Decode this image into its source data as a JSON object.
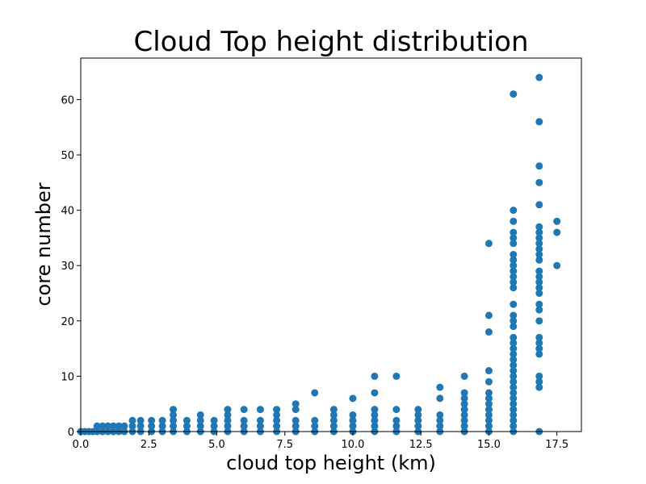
{
  "chart_data": {
    "type": "scatter",
    "title": "Cloud Top height distribution",
    "xlabel": "cloud top height (km)",
    "ylabel": "core number",
    "xlim": [
      0,
      18.4
    ],
    "ylim": [
      0,
      67.5
    ],
    "xticks": [
      0.0,
      2.5,
      5.0,
      7.5,
      10.0,
      12.5,
      15.0,
      17.5
    ],
    "xtick_labels": [
      "0.0",
      "2.5",
      "5.0",
      "7.5",
      "10.0",
      "12.5",
      "15.0",
      "17.5"
    ],
    "yticks": [
      0,
      10,
      20,
      30,
      40,
      50,
      60
    ],
    "ytick_labels": [
      "0",
      "10",
      "20",
      "30",
      "40",
      "50",
      "60"
    ],
    "grid": false,
    "marker_color": "#1f77b4",
    "series": [
      {
        "points": [
          [
            0.0,
            0
          ],
          [
            0.15,
            0
          ],
          [
            0.3,
            0
          ],
          [
            0.45,
            0
          ],
          [
            0.6,
            0
          ],
          [
            0.6,
            1
          ],
          [
            0.8,
            0
          ],
          [
            0.8,
            1
          ],
          [
            1.0,
            0
          ],
          [
            1.0,
            1
          ],
          [
            1.2,
            0
          ],
          [
            1.2,
            1
          ],
          [
            1.4,
            0
          ],
          [
            1.4,
            1
          ],
          [
            1.6,
            0
          ],
          [
            1.6,
            1
          ],
          [
            1.9,
            0
          ],
          [
            1.9,
            1
          ],
          [
            1.9,
            2
          ],
          [
            2.2,
            0
          ],
          [
            2.2,
            1
          ],
          [
            2.2,
            2
          ],
          [
            2.6,
            0
          ],
          [
            2.6,
            1
          ],
          [
            2.6,
            2
          ],
          [
            3.0,
            0
          ],
          [
            3.0,
            1
          ],
          [
            3.0,
            2
          ],
          [
            3.4,
            0
          ],
          [
            3.4,
            1
          ],
          [
            3.4,
            2
          ],
          [
            3.4,
            3
          ],
          [
            3.4,
            4
          ],
          [
            3.9,
            0
          ],
          [
            3.9,
            1
          ],
          [
            3.9,
            2
          ],
          [
            4.4,
            0
          ],
          [
            4.4,
            1
          ],
          [
            4.4,
            2
          ],
          [
            4.4,
            3
          ],
          [
            4.9,
            0
          ],
          [
            4.9,
            1
          ],
          [
            4.9,
            2
          ],
          [
            5.4,
            0
          ],
          [
            5.4,
            1
          ],
          [
            5.4,
            2
          ],
          [
            5.4,
            3
          ],
          [
            5.4,
            4
          ],
          [
            6.0,
            0
          ],
          [
            6.0,
            1
          ],
          [
            6.0,
            2
          ],
          [
            6.0,
            4
          ],
          [
            6.6,
            0
          ],
          [
            6.6,
            1
          ],
          [
            6.6,
            2
          ],
          [
            6.6,
            4
          ],
          [
            7.2,
            0
          ],
          [
            7.2,
            1
          ],
          [
            7.2,
            2
          ],
          [
            7.2,
            3
          ],
          [
            7.2,
            4
          ],
          [
            7.9,
            0
          ],
          [
            7.9,
            1
          ],
          [
            7.9,
            2
          ],
          [
            7.9,
            4
          ],
          [
            7.9,
            5
          ],
          [
            8.6,
            0
          ],
          [
            8.6,
            1
          ],
          [
            8.6,
            2
          ],
          [
            8.6,
            7
          ],
          [
            9.3,
            0
          ],
          [
            9.3,
            1
          ],
          [
            9.3,
            2
          ],
          [
            9.3,
            3
          ],
          [
            9.3,
            4
          ],
          [
            10.0,
            0
          ],
          [
            10.0,
            1
          ],
          [
            10.0,
            2
          ],
          [
            10.0,
            3
          ],
          [
            10.0,
            6
          ],
          [
            10.8,
            0
          ],
          [
            10.8,
            1
          ],
          [
            10.8,
            2
          ],
          [
            10.8,
            3
          ],
          [
            10.8,
            4
          ],
          [
            10.8,
            7
          ],
          [
            10.8,
            10
          ],
          [
            11.6,
            0
          ],
          [
            11.6,
            1
          ],
          [
            11.6,
            2
          ],
          [
            11.6,
            4
          ],
          [
            11.6,
            10
          ],
          [
            12.4,
            0
          ],
          [
            12.4,
            1
          ],
          [
            12.4,
            2
          ],
          [
            12.4,
            3
          ],
          [
            12.4,
            4
          ],
          [
            13.2,
            0
          ],
          [
            13.2,
            1
          ],
          [
            13.2,
            2
          ],
          [
            13.2,
            3
          ],
          [
            13.2,
            6
          ],
          [
            13.2,
            8
          ],
          [
            14.1,
            0
          ],
          [
            14.1,
            1
          ],
          [
            14.1,
            2
          ],
          [
            14.1,
            3
          ],
          [
            14.1,
            4
          ],
          [
            14.1,
            5
          ],
          [
            14.1,
            6
          ],
          [
            14.1,
            7
          ],
          [
            14.1,
            10
          ],
          [
            15.0,
            0
          ],
          [
            15.0,
            1
          ],
          [
            15.0,
            2
          ],
          [
            15.0,
            3
          ],
          [
            15.0,
            4
          ],
          [
            15.0,
            5
          ],
          [
            15.0,
            6
          ],
          [
            15.0,
            7
          ],
          [
            15.0,
            9
          ],
          [
            15.0,
            11
          ],
          [
            15.0,
            18
          ],
          [
            15.0,
            21
          ],
          [
            15.0,
            34
          ],
          [
            15.9,
            0
          ],
          [
            15.9,
            1
          ],
          [
            15.9,
            2
          ],
          [
            15.9,
            3
          ],
          [
            15.9,
            4
          ],
          [
            15.9,
            5
          ],
          [
            15.9,
            6
          ],
          [
            15.9,
            7
          ],
          [
            15.9,
            8
          ],
          [
            15.9,
            9
          ],
          [
            15.9,
            10
          ],
          [
            15.9,
            11
          ],
          [
            15.9,
            12
          ],
          [
            15.9,
            13
          ],
          [
            15.9,
            14
          ],
          [
            15.9,
            15
          ],
          [
            15.9,
            16
          ],
          [
            15.9,
            17
          ],
          [
            15.9,
            19
          ],
          [
            15.9,
            20
          ],
          [
            15.9,
            21
          ],
          [
            15.9,
            23
          ],
          [
            15.9,
            26
          ],
          [
            15.9,
            27
          ],
          [
            15.9,
            28
          ],
          [
            15.9,
            29
          ],
          [
            15.9,
            30
          ],
          [
            15.9,
            31
          ],
          [
            15.9,
            32
          ],
          [
            15.9,
            34
          ],
          [
            15.9,
            35
          ],
          [
            15.9,
            36
          ],
          [
            15.9,
            38
          ],
          [
            15.9,
            40
          ],
          [
            15.9,
            61
          ],
          [
            16.85,
            0
          ],
          [
            16.85,
            8
          ],
          [
            16.85,
            9
          ],
          [
            16.85,
            10
          ],
          [
            16.85,
            14
          ],
          [
            16.85,
            15
          ],
          [
            16.85,
            16
          ],
          [
            16.85,
            17
          ],
          [
            16.85,
            20
          ],
          [
            16.85,
            22
          ],
          [
            16.85,
            23
          ],
          [
            16.85,
            25
          ],
          [
            16.85,
            26
          ],
          [
            16.85,
            27
          ],
          [
            16.85,
            28
          ],
          [
            16.85,
            29
          ],
          [
            16.85,
            31
          ],
          [
            16.85,
            32
          ],
          [
            16.85,
            33
          ],
          [
            16.85,
            34
          ],
          [
            16.85,
            35
          ],
          [
            16.85,
            36
          ],
          [
            16.85,
            37
          ],
          [
            16.85,
            41
          ],
          [
            16.85,
            45
          ],
          [
            16.85,
            48
          ],
          [
            16.85,
            56
          ],
          [
            16.85,
            64
          ],
          [
            17.5,
            30
          ],
          [
            17.5,
            36
          ],
          [
            17.5,
            38
          ]
        ]
      }
    ]
  }
}
